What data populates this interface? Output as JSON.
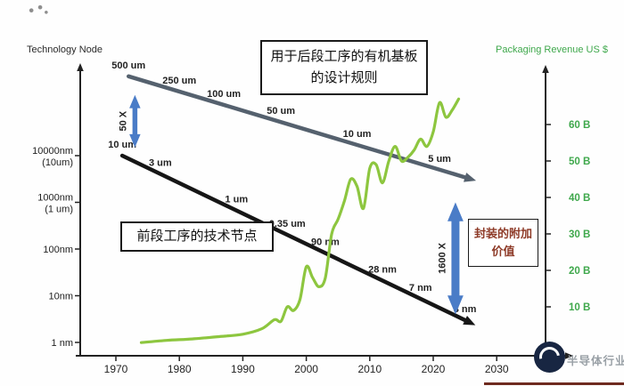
{
  "titles": {
    "left_axis": "Technology Node",
    "right_axis": "Packaging Revenue US $"
  },
  "annotations": {
    "design_rule_line1": "用于后段工序的有机基板",
    "design_rule_line2": "的设计规则",
    "front_end_label": "前段工序的技术节点",
    "value_line1": "封装的附加",
    "value_line2": "价值"
  },
  "watermark": {
    "text": "半导体行业观察"
  },
  "chart_data": {
    "type": "line",
    "title": "",
    "x_axis": {
      "ticks": [
        1970,
        1980,
        1990,
        2000,
        2010,
        2020,
        2030
      ]
    },
    "left_axis": {
      "title": "Technology Node",
      "scale": "log",
      "ticks": [
        {
          "label": "10000nm",
          "sublabel": "(10um)",
          "nm": 10000
        },
        {
          "label": "1000nm",
          "sublabel": "(1 um)",
          "nm": 1000
        },
        {
          "label": "100nm",
          "nm": 100
        },
        {
          "label": "10nm",
          "nm": 10
        },
        {
          "label": "1 nm",
          "nm": 1
        }
      ]
    },
    "right_axis": {
      "title": "Packaging Revenue US $",
      "ticks": [
        {
          "label": "60 B",
          "value": 60
        },
        {
          "label": "50 B",
          "value": 50
        },
        {
          "label": "40 B",
          "value": 40
        },
        {
          "label": "30 B",
          "value": 30
        },
        {
          "label": "20 B",
          "value": 20
        },
        {
          "label": "10 B",
          "value": 10
        }
      ]
    },
    "series": [
      {
        "name": "substrate-design-rule",
        "kind": "arrow",
        "color": "#55616e",
        "width": 4.5,
        "arrow_end_year": 2025,
        "points": [
          {
            "year": 1972,
            "label": "500 um",
            "nm": 500000
          },
          {
            "year": 1980,
            "label": "250 um",
            "nm": 250000
          },
          {
            "year": 1987,
            "label": "100 um",
            "nm": 100000
          },
          {
            "year": 1996,
            "label": "50 um",
            "nm": 50000
          },
          {
            "year": 2008,
            "label": "10 um",
            "nm": 10000
          },
          {
            "year": 2021,
            "label": "5 um",
            "nm": 5000
          }
        ]
      },
      {
        "name": "front-end-node",
        "kind": "arrow",
        "color": "#161616",
        "width": 4.5,
        "arrow_end_year": 2025,
        "points": [
          {
            "year": 1971,
            "label": "10 um",
            "nm": 10000
          },
          {
            "year": 1977,
            "label": "3 um",
            "nm": 3000
          },
          {
            "year": 1989,
            "label": "1 um",
            "nm": 1000
          },
          {
            "year": 1997,
            "label": "0.35 um",
            "nm": 350
          },
          {
            "year": 2003,
            "label": "90 nm",
            "nm": 90
          },
          {
            "year": 2012,
            "label": "28 nm",
            "nm": 28
          },
          {
            "year": 2018,
            "label": "7 nm",
            "nm": 7
          },
          {
            "year": 2025,
            "label": "3 nm",
            "nm": 3
          }
        ]
      },
      {
        "name": "packaging-revenue",
        "kind": "curve",
        "color": "#8dc63f",
        "width": 3.2,
        "points_year_billion": [
          [
            1974,
            0.2
          ],
          [
            1978,
            0.8
          ],
          [
            1982,
            1.2
          ],
          [
            1986,
            1.8
          ],
          [
            1990,
            2.5
          ],
          [
            1993,
            4
          ],
          [
            1995,
            6.5
          ],
          [
            1996,
            6
          ],
          [
            1997,
            10
          ],
          [
            1998,
            9
          ],
          [
            1999,
            12
          ],
          [
            2000,
            21
          ],
          [
            2001,
            18
          ],
          [
            2002,
            15.5
          ],
          [
            2003,
            18
          ],
          [
            2004,
            30
          ],
          [
            2005,
            34
          ],
          [
            2006,
            39
          ],
          [
            2007,
            45
          ],
          [
            2008,
            43
          ],
          [
            2009,
            37
          ],
          [
            2010,
            48
          ],
          [
            2011,
            49
          ],
          [
            2012,
            44
          ],
          [
            2013,
            50
          ],
          [
            2014,
            54
          ],
          [
            2015,
            50
          ],
          [
            2016,
            51
          ],
          [
            2017,
            53
          ],
          [
            2018,
            56
          ],
          [
            2019,
            54
          ],
          [
            2020,
            58
          ],
          [
            2021,
            66
          ],
          [
            2022,
            62
          ],
          [
            2023,
            64
          ],
          [
            2024,
            67
          ]
        ]
      }
    ],
    "value_arrows": [
      {
        "label": "50 X",
        "year": 1973,
        "from_nm": 200000,
        "to_nm": 15000,
        "thickness": 5.5,
        "color": "#4a7cc7"
      },
      {
        "label": "1600 X",
        "year": 2023.5,
        "from_nm": 1000,
        "to_nm": 4,
        "thickness": 9,
        "color": "#4a7cc7"
      }
    ]
  }
}
